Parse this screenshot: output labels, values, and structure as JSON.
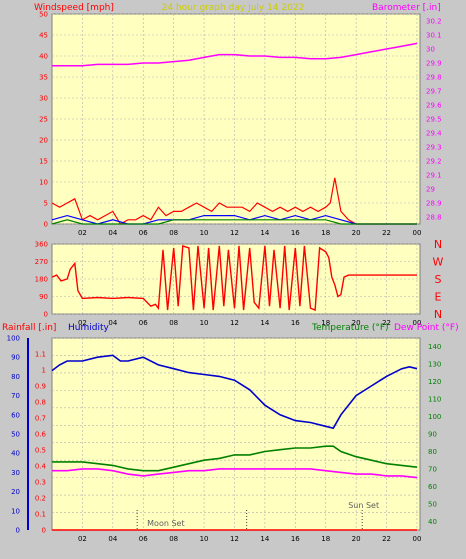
{
  "chart_data": [
    {
      "type": "line",
      "title": "24 hour graph day   July 14 2022",
      "left_label": "Windspeed [mph]",
      "right_label": "Barometer [.in]",
      "x_ticks": [
        "02",
        "04",
        "06",
        "08",
        "10",
        "12",
        "14",
        "16",
        "18",
        "20",
        "22",
        "00"
      ],
      "left_ticks": [
        "0",
        "5",
        "10",
        "15",
        "20",
        "25",
        "30",
        "35",
        "40",
        "45",
        "50"
      ],
      "right_ticks": [
        "28.8",
        "28.9",
        "29",
        "29.1",
        "29.2",
        "29.3",
        "29.4",
        "29.5",
        "29.6",
        "29.7",
        "29.8",
        "29.9",
        "30",
        "30.1",
        "30.2"
      ],
      "ylim_left": [
        0,
        50
      ],
      "ylim_right": [
        28.75,
        30.25
      ],
      "series": [
        {
          "name": "Barometer",
          "axis": "right",
          "color": "#ff00ff",
          "x": [
            0,
            1,
            2,
            3,
            4,
            5,
            6,
            7,
            8,
            9,
            10,
            11,
            12,
            13,
            14,
            15,
            16,
            17,
            18,
            19,
            20,
            21,
            22,
            23,
            24
          ],
          "y": [
            29.88,
            29.88,
            29.88,
            29.89,
            29.89,
            29.89,
            29.9,
            29.9,
            29.91,
            29.92,
            29.94,
            29.96,
            29.96,
            29.95,
            29.95,
            29.94,
            29.94,
            29.93,
            29.93,
            29.94,
            29.96,
            29.98,
            30.0,
            30.02,
            30.04
          ]
        },
        {
          "name": "Wind Gust",
          "axis": "left",
          "color": "#ff0000",
          "x": [
            0,
            0.5,
            1,
            1.5,
            2,
            2.5,
            3,
            3.5,
            4,
            4.5,
            5,
            5.5,
            6,
            6.5,
            7,
            7.5,
            8,
            8.5,
            9,
            9.5,
            10,
            10.5,
            11,
            11.5,
            12,
            12.5,
            13,
            13.5,
            14,
            14.5,
            15,
            15.5,
            16,
            16.5,
            17,
            17.5,
            18,
            18.3,
            18.6,
            19,
            19.5,
            20,
            21,
            22,
            23,
            24
          ],
          "y": [
            5,
            4,
            5,
            6,
            1,
            2,
            1,
            2,
            3,
            0,
            1,
            1,
            2,
            1,
            4,
            2,
            3,
            3,
            4,
            5,
            4,
            3,
            5,
            4,
            4,
            4,
            3,
            5,
            4,
            3,
            4,
            3,
            4,
            3,
            4,
            3,
            4,
            5,
            11,
            3,
            1,
            0,
            0,
            0,
            0,
            0
          ]
        },
        {
          "name": "Wind Speed",
          "axis": "left",
          "color": "#0000ff",
          "x": [
            0,
            1,
            2,
            3,
            4,
            5,
            6,
            7,
            8,
            9,
            10,
            11,
            12,
            13,
            14,
            15,
            16,
            17,
            18,
            19,
            20,
            21,
            22,
            23,
            24
          ],
          "y": [
            1,
            2,
            1,
            0,
            1,
            0,
            0,
            1,
            1,
            1,
            2,
            2,
            2,
            1,
            2,
            1,
            2,
            1,
            2,
            1,
            0,
            0,
            0,
            0,
            0
          ]
        },
        {
          "name": "Wind Average",
          "axis": "left",
          "color": "#008000",
          "x": [
            0,
            1,
            2,
            3,
            4,
            5,
            6,
            7,
            8,
            9,
            10,
            11,
            12,
            13,
            14,
            15,
            16,
            17,
            18,
            19,
            20,
            21,
            22,
            23,
            24
          ],
          "y": [
            0,
            1,
            0,
            0,
            0,
            0,
            0,
            0,
            1,
            1,
            1,
            1,
            1,
            1,
            1,
            1,
            1,
            1,
            1,
            0,
            0,
            0,
            0,
            0,
            0
          ]
        }
      ]
    },
    {
      "type": "scatter",
      "left_label": "",
      "right_letters": [
        "N",
        "W",
        "S",
        "E",
        "N"
      ],
      "x_ticks": [
        "02",
        "04",
        "06",
        "08",
        "10",
        "12",
        "14",
        "16",
        "18",
        "20",
        "22",
        "00"
      ],
      "left_ticks": [
        "0",
        "90",
        "180",
        "270",
        "360"
      ],
      "ylim": [
        0,
        360
      ],
      "series": [
        {
          "name": "Wind Direction",
          "color": "#ff0000",
          "x": [
            0,
            0.3,
            0.6,
            1,
            1.2,
            1.5,
            1.7,
            2,
            3,
            4,
            5,
            6,
            6.5,
            6.8,
            7,
            7.3,
            7.6,
            8,
            8.3,
            8.6,
            9,
            9.3,
            9.6,
            10,
            10.3,
            10.6,
            11,
            11.3,
            11.6,
            12,
            12.3,
            12.6,
            13,
            13.3,
            13.6,
            14,
            14.3,
            14.6,
            15,
            15.3,
            15.6,
            16,
            16.3,
            16.6,
            17,
            17.3,
            17.6,
            18,
            18.2,
            18.4,
            18.6,
            18.8,
            19,
            19.2,
            19.5,
            20,
            21,
            22,
            23,
            24
          ],
          "y": [
            190,
            200,
            170,
            180,
            230,
            260,
            120,
            80,
            85,
            80,
            85,
            80,
            40,
            50,
            30,
            330,
            20,
            340,
            40,
            350,
            340,
            20,
            350,
            30,
            340,
            20,
            350,
            40,
            330,
            30,
            350,
            20,
            340,
            60,
            30,
            350,
            40,
            330,
            30,
            350,
            20,
            340,
            40,
            350,
            30,
            20,
            340,
            320,
            290,
            190,
            150,
            90,
            100,
            190,
            200,
            200,
            200,
            200,
            200,
            200
          ]
        }
      ]
    },
    {
      "type": "line",
      "left_label_1": "Rainfall [.in]",
      "left_label_2": "Humidity",
      "right_label_1": "Temperature (°F)",
      "right_label_2": "Dew Point (°F)",
      "x_ticks": [
        "02",
        "04",
        "06",
        "08",
        "10",
        "12",
        "14",
        "16",
        "18",
        "20",
        "22",
        "00"
      ],
      "rain_ticks": [
        "0",
        "0.1",
        "0.2",
        "0.3",
        "0.4",
        "0.5",
        "0.6",
        "0.7",
        "0.8",
        "0.9",
        "1",
        "1.1"
      ],
      "humidity_ticks": [
        "0",
        "10",
        "20",
        "30",
        "40",
        "50",
        "60",
        "70",
        "80",
        "90",
        "100"
      ],
      "temp_ticks": [
        "40",
        "50",
        "60",
        "70",
        "80",
        "90",
        "100",
        "110",
        "120",
        "130",
        "140"
      ],
      "ylim_rain": [
        0,
        1.2
      ],
      "ylim_humidity": [
        0,
        100
      ],
      "ylim_temp": [
        35,
        145
      ],
      "annotations": [
        "Moon Set",
        "Sun Set"
      ],
      "series": [
        {
          "name": "Humidity",
          "axis": "humidity",
          "color": "#0000cc",
          "x": [
            0,
            0.5,
            1,
            2,
            3,
            4,
            4.5,
            5,
            6,
            7,
            8,
            9,
            10,
            11,
            12,
            13,
            14,
            15,
            16,
            17,
            18,
            18.5,
            19,
            20,
            21,
            22,
            23,
            23.5,
            24
          ],
          "y": [
            83,
            86,
            88,
            88,
            90,
            91,
            88,
            88,
            90,
            86,
            84,
            82,
            81,
            80,
            78,
            73,
            65,
            60,
            57,
            56,
            54,
            53,
            60,
            70,
            75,
            80,
            84,
            85,
            84
          ]
        },
        {
          "name": "Temperature",
          "axis": "temp",
          "color": "#008000",
          "x": [
            0,
            1,
            2,
            3,
            4,
            5,
            6,
            7,
            8,
            9,
            10,
            11,
            12,
            13,
            14,
            15,
            16,
            17,
            18,
            18.5,
            19,
            20,
            21,
            22,
            23,
            24
          ],
          "y": [
            74,
            74,
            74,
            73,
            72,
            70,
            69,
            69,
            71,
            73,
            75,
            76,
            78,
            78,
            80,
            81,
            82,
            82,
            83,
            83,
            80,
            77,
            75,
            73,
            72,
            71
          ]
        },
        {
          "name": "Dew Point",
          "axis": "temp",
          "color": "#ff00ff",
          "x": [
            0,
            1,
            2,
            3,
            4,
            5,
            6,
            7,
            8,
            9,
            10,
            11,
            12,
            13,
            14,
            15,
            16,
            17,
            18,
            19,
            20,
            21,
            22,
            23,
            24
          ],
          "y": [
            69,
            69,
            70,
            70,
            69,
            67,
            66,
            67,
            68,
            69,
            69,
            70,
            70,
            70,
            70,
            70,
            70,
            70,
            69,
            68,
            67,
            67,
            66,
            66,
            65
          ]
        },
        {
          "name": "Rainfall",
          "axis": "rain",
          "color": "#ff0000",
          "x": [
            0,
            24
          ],
          "y": [
            0,
            0
          ]
        }
      ],
      "markers": [
        {
          "label": "Moon Set",
          "x": 5.6
        },
        {
          "label": "",
          "x": 12.8
        },
        {
          "label": "Sun Set",
          "x": 20.4
        }
      ]
    }
  ]
}
